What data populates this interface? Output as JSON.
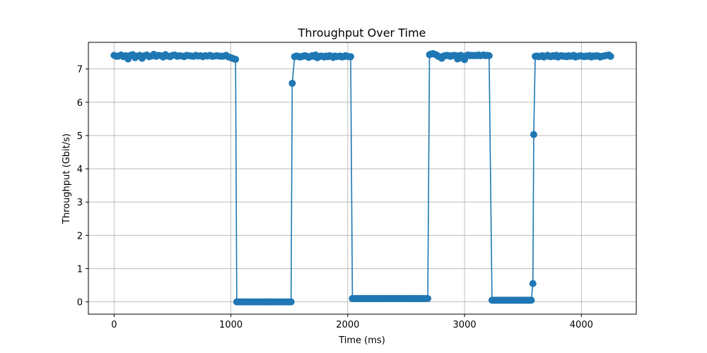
{
  "chart_data": {
    "type": "line",
    "title": "Throughput Over Time",
    "xlabel": "Time (ms)",
    "ylabel": "Throughput (Gbit/s)",
    "xlim": [
      -220,
      4470
    ],
    "ylim": [
      -0.37,
      7.8
    ],
    "xticks": [
      0,
      1000,
      2000,
      3000,
      4000
    ],
    "yticks": [
      0,
      1,
      2,
      3,
      4,
      5,
      6,
      7
    ],
    "grid": true,
    "legend": "none",
    "colors": {
      "series": "#1f77b4",
      "grid": "#b0b0b0",
      "axes": "#000000"
    },
    "series": [
      {
        "marker": "circle",
        "segments": [
          {
            "x_start": 0,
            "x_end": 1040,
            "step": 20,
            "base": 7.39,
            "jitter": [
              0.02,
              -0.01,
              0.0,
              0.03,
              -0.02,
              0.01,
              -0.09,
              0.02,
              0.04,
              -0.05,
              0.0,
              0.02,
              -0.07,
              0.01,
              0.03,
              -0.02,
              0.0,
              0.05,
              -0.01,
              0.02,
              0.01,
              -0.03,
              0.04,
              0.0,
              -0.02,
              0.02,
              0.03,
              -0.01,
              0.01,
              0.0,
              -0.02,
              0.02,
              0.01,
              0.0,
              -0.01,
              0.02,
              0.0,
              0.01,
              -0.02,
              0.01,
              0.0,
              0.02,
              -0.01,
              0.0,
              0.01,
              0.0,
              -0.01,
              0.0,
              0.02,
              -0.03,
              -0.05,
              -0.08,
              -0.1
            ]
          },
          {
            "x_start": 1050,
            "x_end": 1525,
            "step": 15,
            "base": 0.0,
            "jitter": [
              0.0
            ]
          },
          {
            "x_start": 1525,
            "x_end": 1525,
            "step": 1,
            "base": 6.57,
            "jitter": [
              0.0
            ]
          },
          {
            "x_start": 1545,
            "x_end": 2035,
            "step": 15,
            "base": 7.37,
            "jitter": [
              0.0,
              0.02,
              0.01,
              -0.01,
              0.0,
              0.02,
              0.03,
              0.01,
              -0.02,
              0.0,
              0.03,
              0.01,
              0.05,
              -0.03,
              0.0,
              0.02,
              0.01,
              -0.01,
              0.02,
              0.0,
              0.03,
              0.01,
              -0.02,
              0.02,
              0.0,
              0.01,
              0.02,
              -0.01,
              0.0,
              0.03,
              0.01,
              0.0,
              0.0,
              -0.01
            ]
          },
          {
            "x_start": 2040,
            "x_end": 2690,
            "step": 15,
            "base": 0.1,
            "jitter": [
              0.0
            ]
          },
          {
            "x_start": 2700,
            "x_end": 3220,
            "step": 15,
            "base": 7.4,
            "jitter": [
              0.03,
              0.05,
              0.06,
              0.04,
              0.02,
              -0.02,
              -0.04,
              -0.08,
              -0.01,
              0.0,
              0.01,
              0.0,
              -0.02,
              0.0,
              0.01,
              0.0,
              -0.1,
              0.0,
              0.01,
              -0.08,
              -0.12,
              0.0,
              0.02,
              0.0,
              0.01,
              0.0,
              0.01,
              0.0,
              0.02,
              0.0,
              0.01,
              0.02,
              0.0,
              0.01,
              0.0,
              0.02
            ]
          },
          {
            "x_start": 3235,
            "x_end": 3580,
            "step": 12,
            "base": 0.05,
            "jitter": [
              0.0
            ]
          },
          {
            "x_start": 3585,
            "x_end": 3585,
            "step": 1,
            "base": 0.55,
            "jitter": [
              0.0
            ]
          },
          {
            "x_start": 3592,
            "x_end": 3592,
            "step": 1,
            "base": 5.03,
            "jitter": [
              0.0
            ]
          },
          {
            "x_start": 3605,
            "x_end": 4250,
            "step": 15,
            "base": 7.38,
            "jitter": [
              0.0,
              0.01,
              -0.01,
              0.0,
              0.02,
              -0.02,
              0.01,
              0.03,
              0.0,
              -0.01,
              0.02,
              0.0,
              0.03,
              -0.02,
              0.01,
              0.02,
              0.0,
              0.01,
              -0.01,
              0.02,
              0.0,
              0.01,
              0.03,
              -0.02,
              0.0,
              0.01,
              0.02,
              0.0,
              -0.01,
              0.01,
              0.0,
              0.02,
              -0.02,
              0.01,
              0.0,
              0.02,
              0.01,
              -0.02,
              0.0,
              0.01,
              0.02,
              0.03,
              0.04
            ]
          }
        ]
      }
    ]
  }
}
